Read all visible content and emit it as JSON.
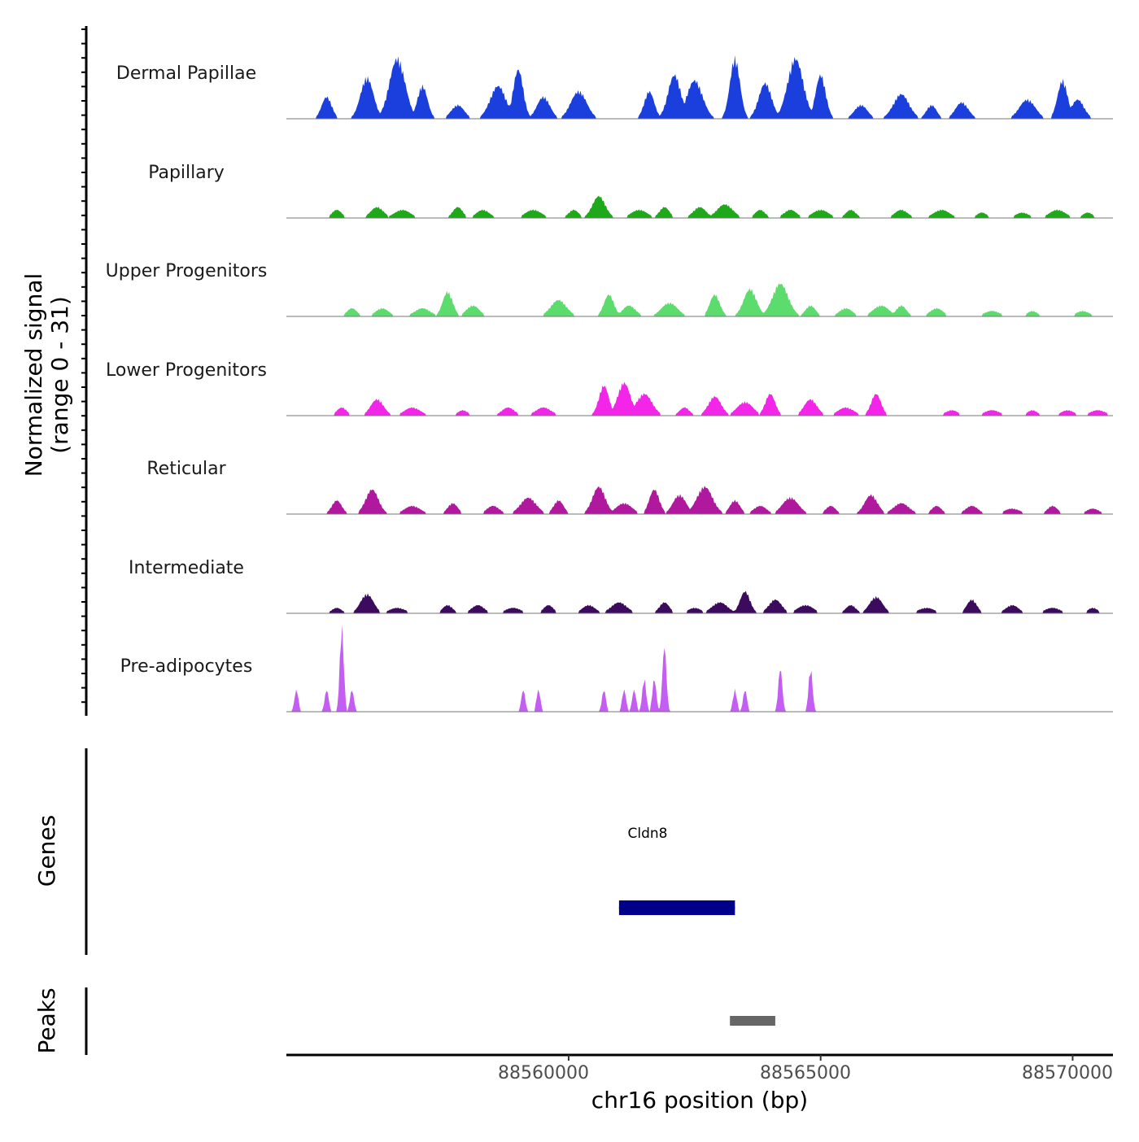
{
  "chart_data": {
    "type": "area",
    "y_axis_label_line1": "Normalized signal",
    "y_axis_label_line2": "(range 0 - 31)",
    "ylim": [
      0,
      31
    ],
    "genes_panel_label": "Genes",
    "peaks_panel_label": "Peaks",
    "x_axis_label": "chr16 position (bp)",
    "xlim": [
      88554400,
      88570800
    ],
    "x_ticks": [
      {
        "value": 88560000,
        "label": "88560000"
      },
      {
        "value": 88565000,
        "label": "88565000"
      },
      {
        "value": 88570000,
        "label": "88570000"
      }
    ],
    "tracks": [
      {
        "name": "Dermal Papillae",
        "color": "#1a3fdc",
        "peaks": [
          [
            88555200,
            8
          ],
          [
            88556000,
            15
          ],
          [
            88556600,
            22
          ],
          [
            88557100,
            12
          ],
          [
            88557800,
            5
          ],
          [
            88558600,
            12
          ],
          [
            88559000,
            18
          ],
          [
            88559500,
            8
          ],
          [
            88560200,
            10
          ],
          [
            88561600,
            10
          ],
          [
            88562100,
            16
          ],
          [
            88562500,
            14
          ],
          [
            88563300,
            22
          ],
          [
            88563900,
            13
          ],
          [
            88564500,
            22
          ],
          [
            88565000,
            16
          ],
          [
            88565800,
            5
          ],
          [
            88566600,
            9
          ],
          [
            88567200,
            5
          ],
          [
            88567800,
            6
          ],
          [
            88569100,
            7
          ],
          [
            88569800,
            14
          ],
          [
            88570100,
            7
          ]
        ]
      },
      {
        "name": "Papillary",
        "color": "#1ea81a",
        "peaks": [
          [
            88555400,
            3
          ],
          [
            88556200,
            4
          ],
          [
            88556700,
            3
          ],
          [
            88557800,
            4
          ],
          [
            88558300,
            3
          ],
          [
            88559300,
            3
          ],
          [
            88560100,
            3
          ],
          [
            88560600,
            8
          ],
          [
            88561400,
            3
          ],
          [
            88561900,
            4
          ],
          [
            88562600,
            4
          ],
          [
            88563100,
            5
          ],
          [
            88563800,
            3
          ],
          [
            88564400,
            3
          ],
          [
            88565000,
            3
          ],
          [
            88565600,
            3
          ],
          [
            88566600,
            3
          ],
          [
            88567400,
            3
          ],
          [
            88568200,
            2
          ],
          [
            88569000,
            2
          ],
          [
            88569700,
            3
          ],
          [
            88570300,
            2
          ]
        ]
      },
      {
        "name": "Upper Progenitors",
        "color": "#5ddc6e",
        "peaks": [
          [
            88555700,
            3
          ],
          [
            88556300,
            3
          ],
          [
            88557100,
            3
          ],
          [
            88557600,
            9
          ],
          [
            88558100,
            4
          ],
          [
            88559800,
            6
          ],
          [
            88560800,
            8
          ],
          [
            88561200,
            4
          ],
          [
            88562000,
            5
          ],
          [
            88562900,
            8
          ],
          [
            88563600,
            10
          ],
          [
            88564200,
            12
          ],
          [
            88564800,
            4
          ],
          [
            88565500,
            3
          ],
          [
            88566200,
            4
          ],
          [
            88566600,
            4
          ],
          [
            88567300,
            3
          ],
          [
            88568400,
            2
          ],
          [
            88569200,
            2
          ],
          [
            88570200,
            2
          ]
        ]
      },
      {
        "name": "Lower Progenitors",
        "color": "#f225e8",
        "peaks": [
          [
            88555500,
            3
          ],
          [
            88556200,
            6
          ],
          [
            88556900,
            3
          ],
          [
            88557900,
            2
          ],
          [
            88558800,
            3
          ],
          [
            88559500,
            3
          ],
          [
            88560700,
            11
          ],
          [
            88561100,
            12
          ],
          [
            88561500,
            8
          ],
          [
            88562300,
            3
          ],
          [
            88562900,
            7
          ],
          [
            88563500,
            5
          ],
          [
            88564000,
            8
          ],
          [
            88564800,
            6
          ],
          [
            88565500,
            3
          ],
          [
            88566100,
            8
          ],
          [
            88567600,
            2
          ],
          [
            88568400,
            2
          ],
          [
            88569200,
            2
          ],
          [
            88569900,
            2
          ],
          [
            88570500,
            2
          ]
        ]
      },
      {
        "name": "Reticular",
        "color": "#b0189e",
        "peaks": [
          [
            88555400,
            5
          ],
          [
            88556100,
            9
          ],
          [
            88556900,
            3
          ],
          [
            88557700,
            4
          ],
          [
            88558500,
            3
          ],
          [
            88559200,
            6
          ],
          [
            88559800,
            5
          ],
          [
            88560600,
            10
          ],
          [
            88561100,
            4
          ],
          [
            88561700,
            9
          ],
          [
            88562200,
            7
          ],
          [
            88562700,
            10
          ],
          [
            88563300,
            5
          ],
          [
            88563800,
            3
          ],
          [
            88564400,
            6
          ],
          [
            88565200,
            3
          ],
          [
            88566000,
            7
          ],
          [
            88566600,
            4
          ],
          [
            88567300,
            3
          ],
          [
            88568000,
            3
          ],
          [
            88568800,
            2
          ],
          [
            88569600,
            3
          ],
          [
            88570400,
            2
          ]
        ]
      },
      {
        "name": "Intermediate",
        "color": "#3c0b5e",
        "peaks": [
          [
            88555400,
            2
          ],
          [
            88556000,
            7
          ],
          [
            88556600,
            2
          ],
          [
            88557600,
            3
          ],
          [
            88558200,
            3
          ],
          [
            88558900,
            2
          ],
          [
            88559600,
            3
          ],
          [
            88560400,
            3
          ],
          [
            88561000,
            4
          ],
          [
            88561900,
            4
          ],
          [
            88562500,
            2
          ],
          [
            88563000,
            4
          ],
          [
            88563500,
            8
          ],
          [
            88564100,
            5
          ],
          [
            88564700,
            3
          ],
          [
            88565600,
            3
          ],
          [
            88566100,
            6
          ],
          [
            88567100,
            2
          ],
          [
            88568000,
            5
          ],
          [
            88568800,
            3
          ],
          [
            88569600,
            2
          ],
          [
            88570400,
            2
          ]
        ]
      },
      {
        "name": "Pre-adipocytes",
        "color": "#c45ef2",
        "peaks": [
          [
            88554600,
            8
          ],
          [
            88555200,
            8
          ],
          [
            88555500,
            31
          ],
          [
            88555700,
            8
          ],
          [
            88559100,
            8
          ],
          [
            88559400,
            8
          ],
          [
            88560700,
            8
          ],
          [
            88561100,
            8
          ],
          [
            88561300,
            8
          ],
          [
            88561500,
            12
          ],
          [
            88561700,
            12
          ],
          [
            88561900,
            24
          ],
          [
            88563300,
            8
          ],
          [
            88563500,
            8
          ],
          [
            88564200,
            16
          ],
          [
            88564800,
            16
          ]
        ]
      }
    ],
    "genes": [
      {
        "name": "Cldn8",
        "start": 88561000,
        "end": 88563300,
        "color": "#00008b"
      }
    ],
    "peak_regions": [
      {
        "start": 88563200,
        "end": 88564100,
        "color": "#666666"
      }
    ]
  }
}
